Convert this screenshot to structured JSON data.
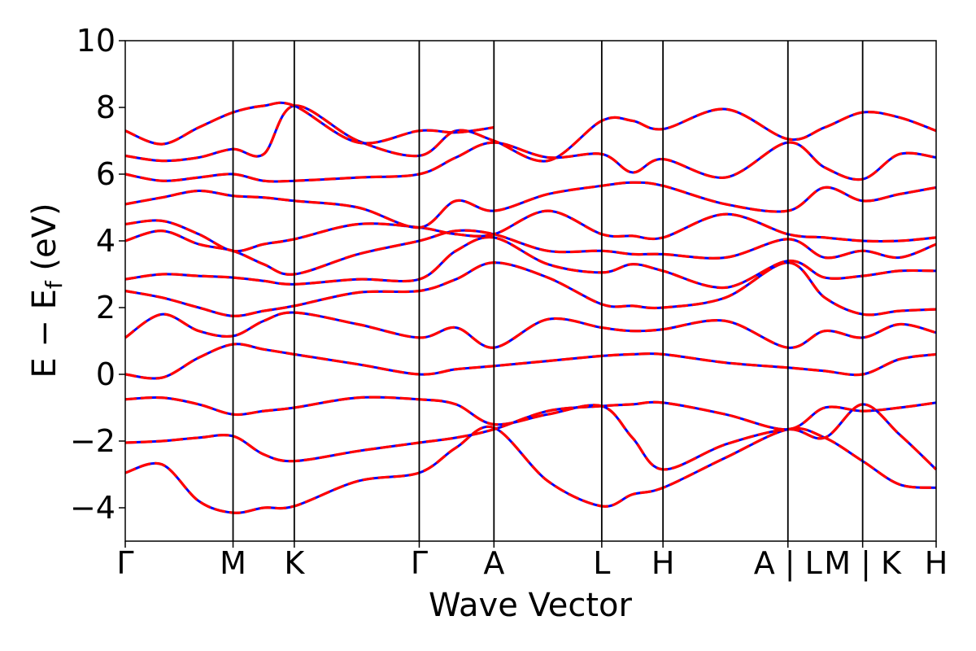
{
  "chart_data": {
    "type": "line",
    "title": "",
    "xlabel": "Wave Vector",
    "ylabel": "E − E",
    "ylabel_sub": "f",
    "ylabel_unit": " (eV)",
    "ylim": [
      -5,
      10
    ],
    "yticks": [
      {
        "value": -4,
        "label": "−4"
      },
      {
        "value": -2,
        "label": "−2"
      },
      {
        "value": 0,
        "label": "0"
      },
      {
        "value": 2,
        "label": "2"
      },
      {
        "value": 4,
        "label": "4"
      },
      {
        "value": 6,
        "label": "6"
      },
      {
        "value": 8,
        "label": "8"
      },
      {
        "value": 10,
        "label": "10"
      }
    ],
    "xlim": [
      0,
      6.62
    ],
    "kpoints": [
      {
        "position": 0.0,
        "label": "Γ"
      },
      {
        "position": 0.88,
        "label": "M"
      },
      {
        "position": 1.38,
        "label": "K"
      },
      {
        "position": 2.4,
        "label": "Γ"
      },
      {
        "position": 3.01,
        "label": "A"
      },
      {
        "position": 3.89,
        "label": "L"
      },
      {
        "position": 4.39,
        "label": "H"
      },
      {
        "position": 5.41,
        "label": "A | L"
      },
      {
        "position": 6.02,
        "label": "M | K"
      },
      {
        "position": 6.62,
        "label": "H"
      }
    ],
    "band_styles": [
      {
        "name": "",
        "color": "#0000ff",
        "linestyle": "solid"
      },
      {
        "name": "",
        "color": "#ff0000",
        "linestyle": "dashed"
      }
    ],
    "bands": [
      {
        "x": [
          0,
          0.3,
          0.6,
          0.88,
          1.13,
          1.38,
          1.9,
          2.4,
          2.7,
          3.01,
          3.45,
          3.89,
          4.14,
          4.39,
          4.9,
          5.41,
          5.71,
          6.02,
          6.32,
          6.62
        ],
        "y": [
          -2.95,
          -2.7,
          -3.8,
          -4.15,
          -4.0,
          -3.95,
          -3.2,
          -2.95,
          -2.2,
          -1.6,
          -3.2,
          -3.95,
          -3.6,
          -3.4,
          -2.5,
          -1.65,
          -1.9,
          -2.6,
          -3.3,
          -3.4
        ]
      },
      {
        "x": [
          0,
          0.3,
          0.6,
          0.88,
          1.13,
          1.38,
          1.9,
          2.4,
          2.7,
          3.01,
          3.45,
          3.89,
          4.14,
          4.39,
          4.9,
          5.41,
          5.71,
          6.02,
          6.32,
          6.62
        ],
        "y": [
          -2.05,
          -2.0,
          -1.9,
          -1.85,
          -2.4,
          -2.6,
          -2.3,
          -2.05,
          -1.9,
          -1.65,
          -1.1,
          -0.95,
          -0.9,
          -0.85,
          -1.2,
          -1.65,
          -1.0,
          -1.1,
          -1.0,
          -0.85
        ]
      },
      {
        "x": [
          0,
          0.3,
          0.6,
          0.88,
          1.13,
          1.38,
          1.9,
          2.4,
          2.7,
          3.01,
          3.45,
          3.89,
          4.14,
          4.39,
          4.9,
          5.41,
          5.71,
          6.02,
          6.32,
          6.62
        ],
        "y": [
          -0.75,
          -0.7,
          -0.9,
          -1.2,
          -1.1,
          -1.0,
          -0.7,
          -0.75,
          -0.9,
          -1.5,
          -1.2,
          -0.95,
          -1.9,
          -2.85,
          -2.1,
          -1.65,
          -1.9,
          -0.9,
          -1.8,
          -2.85
        ]
      },
      {
        "x": [
          0,
          0.3,
          0.6,
          0.88,
          1.13,
          1.38,
          1.9,
          2.4,
          2.7,
          3.01,
          3.45,
          3.89,
          4.14,
          4.39,
          4.9,
          5.41,
          5.71,
          6.02,
          6.32,
          6.62
        ],
        "y": [
          0.0,
          -0.1,
          0.5,
          0.9,
          0.75,
          0.6,
          0.3,
          0.0,
          0.15,
          0.25,
          0.4,
          0.55,
          0.6,
          0.6,
          0.35,
          0.2,
          0.1,
          0.0,
          0.45,
          0.6
        ]
      },
      {
        "x": [
          0,
          0.3,
          0.6,
          0.88,
          1.13,
          1.38,
          1.9,
          2.4,
          2.7,
          3.01,
          3.45,
          3.89,
          4.14,
          4.39,
          4.9,
          5.41,
          5.71,
          6.02,
          6.32,
          6.62
        ],
        "y": [
          1.1,
          1.8,
          1.3,
          1.15,
          1.6,
          1.85,
          1.5,
          1.1,
          1.4,
          0.8,
          1.65,
          1.4,
          1.3,
          1.35,
          1.6,
          0.8,
          1.3,
          1.1,
          1.5,
          1.25
        ]
      },
      {
        "x": [
          0,
          0.3,
          0.6,
          0.88,
          1.13,
          1.38,
          1.9,
          2.4,
          2.7,
          3.01,
          3.45,
          3.89,
          4.14,
          4.39,
          4.9,
          5.41,
          5.71,
          6.02,
          6.32,
          6.62
        ],
        "y": [
          2.5,
          2.3,
          2.0,
          1.75,
          1.9,
          2.05,
          2.45,
          2.5,
          2.85,
          3.35,
          2.9,
          2.1,
          2.05,
          2.0,
          2.3,
          3.35,
          2.3,
          1.8,
          1.9,
          1.95
        ]
      },
      {
        "x": [
          0,
          0.3,
          0.6,
          0.88,
          1.13,
          1.38,
          1.9,
          2.4,
          2.7,
          3.01,
          3.45,
          3.89,
          4.14,
          4.39,
          4.9,
          5.41,
          5.71,
          6.02,
          6.32,
          6.62
        ],
        "y": [
          2.85,
          3.0,
          2.95,
          2.9,
          2.8,
          2.7,
          2.85,
          2.85,
          3.7,
          4.1,
          3.3,
          3.05,
          3.3,
          3.1,
          2.6,
          3.4,
          2.9,
          2.95,
          3.1,
          3.1
        ]
      },
      {
        "x": [
          0,
          0.3,
          0.6,
          0.88,
          1.13,
          1.38,
          1.9,
          2.4,
          2.7,
          3.01,
          3.45,
          3.89,
          4.14,
          4.39,
          4.9,
          5.41,
          5.71,
          6.02,
          6.32,
          6.62
        ],
        "y": [
          4.0,
          4.3,
          3.9,
          3.7,
          3.3,
          3.0,
          3.6,
          4.0,
          4.3,
          4.2,
          3.7,
          3.7,
          3.6,
          3.6,
          3.5,
          4.05,
          3.5,
          3.7,
          3.5,
          3.9
        ]
      },
      {
        "x": [
          0,
          0.3,
          0.6,
          0.88,
          1.13,
          1.38,
          1.9,
          2.4,
          2.7,
          3.01,
          3.45,
          3.89,
          4.14,
          4.39,
          4.9,
          5.41,
          5.71,
          6.02,
          6.32,
          6.62
        ],
        "y": [
          4.5,
          4.6,
          4.2,
          3.7,
          3.9,
          4.05,
          4.5,
          4.4,
          4.2,
          4.2,
          4.9,
          4.2,
          4.15,
          4.1,
          4.8,
          4.2,
          4.1,
          4.0,
          4.0,
          4.1
        ]
      },
      {
        "x": [
          0,
          0.3,
          0.6,
          0.88,
          1.13,
          1.38,
          1.9,
          2.4,
          2.7,
          3.01,
          3.45,
          3.89,
          4.14,
          4.39,
          4.9,
          5.41,
          5.71,
          6.02,
          6.32,
          6.62
        ],
        "y": [
          5.1,
          5.3,
          5.5,
          5.35,
          5.3,
          5.2,
          5.0,
          4.4,
          5.2,
          4.9,
          5.4,
          5.65,
          5.75,
          5.65,
          5.1,
          4.9,
          5.6,
          5.2,
          5.4,
          5.6
        ]
      },
      {
        "x": [
          0,
          0.3,
          0.6,
          0.88,
          1.13,
          1.38,
          1.9,
          2.4,
          2.7,
          3.01,
          3.45,
          3.89,
          4.14,
          4.39,
          4.9,
          5.41,
          5.71,
          6.02,
          6.32,
          6.62
        ],
        "y": [
          6.0,
          5.8,
          5.9,
          6.0,
          5.8,
          5.8,
          5.9,
          6.0,
          6.5,
          6.95,
          6.5,
          6.6,
          6.05,
          6.45,
          5.9,
          6.95,
          6.2,
          5.85,
          6.6,
          6.5
        ]
      },
      {
        "x": [
          0,
          0.3,
          0.6,
          0.88,
          1.13,
          1.38,
          1.9,
          2.4,
          2.7,
          3.01,
          3.45,
          3.89,
          4.14,
          4.39,
          4.9,
          5.41,
          5.71,
          6.02,
          6.32,
          6.62
        ],
        "y": [
          6.55,
          6.4,
          6.5,
          6.75,
          6.6,
          8.05,
          7.0,
          6.55,
          7.3,
          7.0,
          6.4,
          7.6,
          7.6,
          7.35,
          7.95,
          7.05,
          7.4,
          7.85,
          7.7,
          7.3
        ]
      },
      {
        "x": [
          0,
          0.3,
          0.6,
          0.88,
          1.13,
          1.38,
          1.9,
          2.4,
          2.7,
          3.01
        ],
        "y": [
          7.3,
          6.9,
          7.4,
          7.85,
          8.05,
          8.05,
          6.95,
          7.3,
          7.25,
          7.4
        ]
      }
    ]
  }
}
